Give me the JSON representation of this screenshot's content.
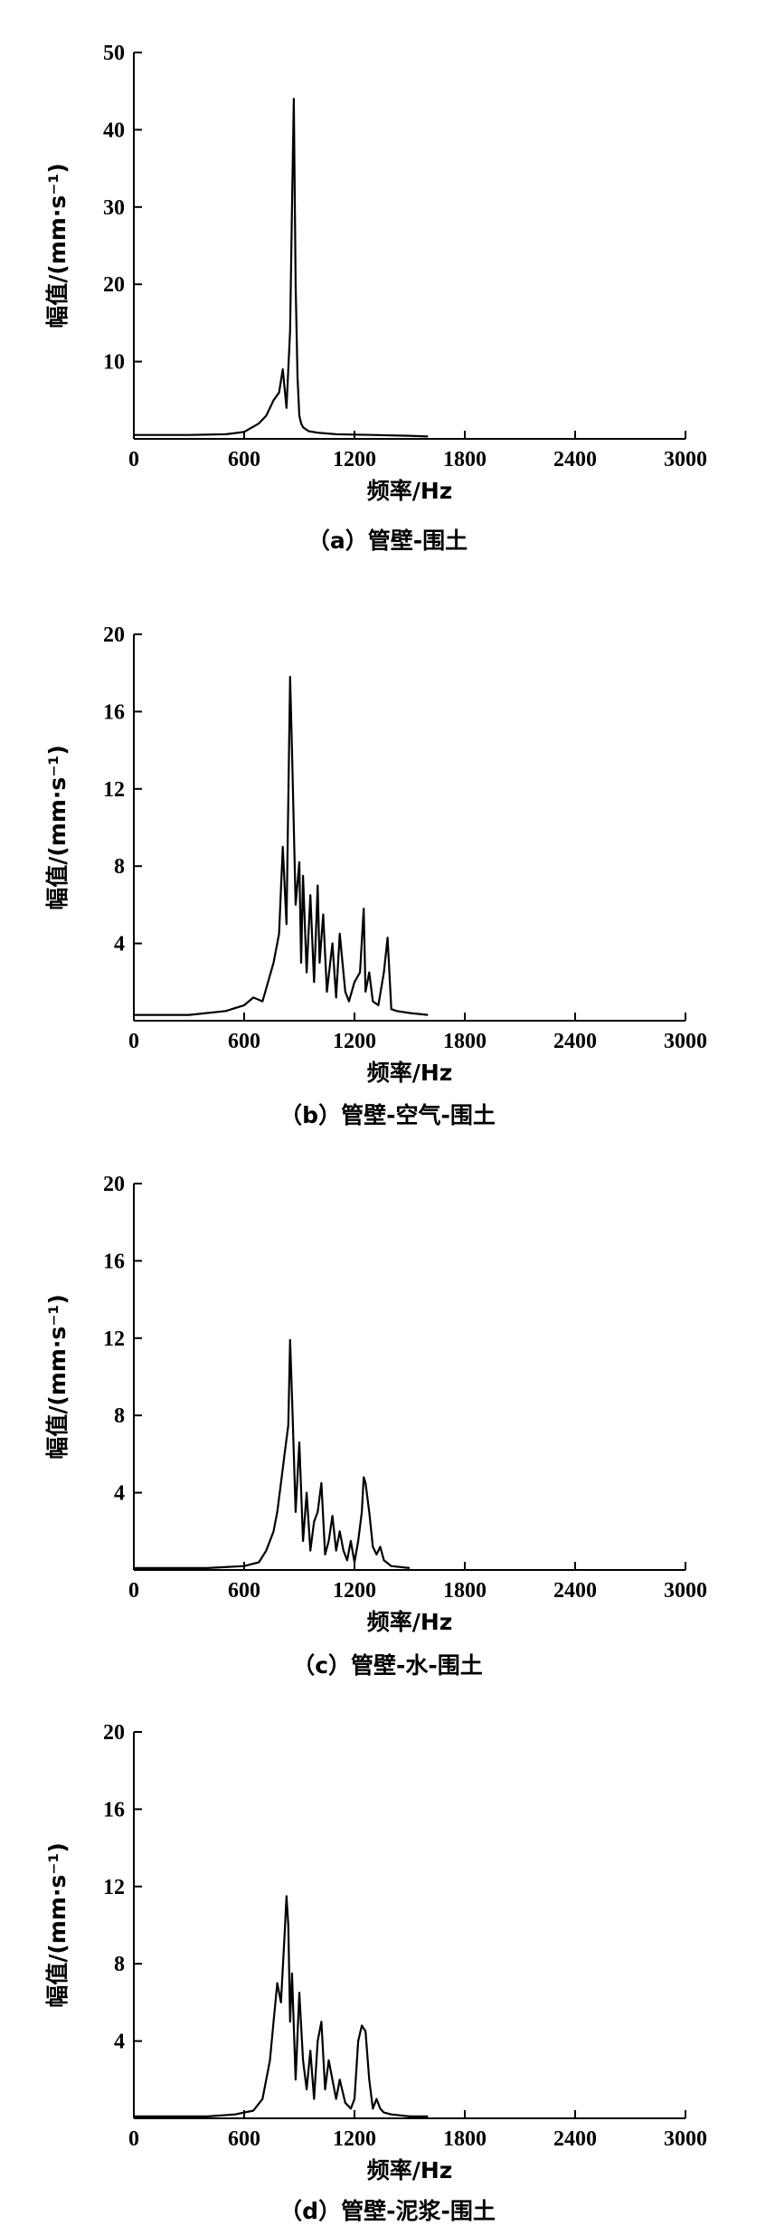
{
  "chart_data": [
    {
      "type": "line",
      "caption": "（a）管壁-围土",
      "xlabel": "频率/Hz",
      "ylabel": "幅值/(mm·s⁻¹)",
      "xlim": [
        0,
        3000
      ],
      "ylim": [
        0,
        50
      ],
      "xticks": [
        0,
        600,
        1200,
        1800,
        2400,
        3000
      ],
      "yticks": [
        10,
        20,
        30,
        40,
        50
      ],
      "series": [
        {
          "x": [
            0,
            300,
            500,
            600,
            680,
            720,
            760,
            790,
            810,
            830,
            850,
            860,
            870,
            880,
            890,
            900,
            910,
            920,
            950,
            1000,
            1100,
            1300,
            1500,
            1600
          ],
          "y": [
            0.5,
            0.5,
            0.6,
            0.9,
            2,
            3,
            5,
            6,
            9,
            4,
            14,
            30,
            44,
            20,
            8,
            3,
            2,
            1.5,
            1,
            0.8,
            0.6,
            0.5,
            0.4,
            0.3
          ]
        }
      ]
    },
    {
      "type": "line",
      "caption": "（b）管壁-空气-围土",
      "xlabel": "频率/Hz",
      "ylabel": "幅值/(mm·s⁻¹)",
      "xlim": [
        0,
        3000
      ],
      "ylim": [
        0,
        20
      ],
      "xticks": [
        0,
        600,
        1200,
        1800,
        2400,
        3000
      ],
      "yticks": [
        4,
        8,
        12,
        16,
        20
      ],
      "series": [
        {
          "x": [
            0,
            300,
            500,
            600,
            650,
            700,
            730,
            760,
            790,
            810,
            830,
            850,
            860,
            880,
            900,
            910,
            920,
            940,
            960,
            980,
            1000,
            1010,
            1030,
            1050,
            1080,
            1100,
            1120,
            1150,
            1170,
            1200,
            1230,
            1250,
            1260,
            1280,
            1300,
            1330,
            1360,
            1380,
            1400,
            1430,
            1500,
            1600
          ],
          "y": [
            0.3,
            0.3,
            0.5,
            0.8,
            1.2,
            1.0,
            2.0,
            3.0,
            4.5,
            9.0,
            5.0,
            17.8,
            14.0,
            6.0,
            8.2,
            3.0,
            7.5,
            2.5,
            6.5,
            2.0,
            7.0,
            3.0,
            5.5,
            1.5,
            4.0,
            1.2,
            4.5,
            1.5,
            1.0,
            2.0,
            2.5,
            5.8,
            1.5,
            2.5,
            1.0,
            0.8,
            2.5,
            4.3,
            0.6,
            0.5,
            0.4,
            0.3
          ]
        }
      ]
    },
    {
      "type": "line",
      "caption": "（c）管壁-水-围土",
      "xlabel": "频率/Hz",
      "ylabel": "幅值/(mm·s⁻¹)",
      "xlim": [
        0,
        3000
      ],
      "ylim": [
        0,
        20
      ],
      "xticks": [
        0,
        600,
        1200,
        1800,
        2400,
        3000
      ],
      "yticks": [
        4,
        8,
        12,
        16,
        20
      ],
      "series": [
        {
          "x": [
            0,
            400,
            600,
            680,
            720,
            760,
            780,
            800,
            820,
            840,
            850,
            860,
            870,
            880,
            900,
            920,
            940,
            960,
            980,
            1000,
            1020,
            1040,
            1060,
            1080,
            1100,
            1120,
            1140,
            1160,
            1180,
            1200,
            1220,
            1240,
            1250,
            1260,
            1280,
            1300,
            1320,
            1340,
            1360,
            1400,
            1500
          ],
          "y": [
            0.1,
            0.1,
            0.2,
            0.4,
            1.0,
            2.0,
            3.0,
            4.5,
            6.0,
            7.5,
            11.9,
            9.0,
            6.0,
            3.0,
            6.6,
            1.5,
            4.0,
            1.0,
            2.5,
            3.0,
            4.5,
            0.8,
            1.5,
            2.8,
            1.0,
            2.0,
            1.0,
            0.5,
            1.5,
            0.4,
            1.5,
            3.0,
            4.8,
            4.5,
            3.0,
            1.2,
            0.8,
            1.2,
            0.5,
            0.2,
            0.1
          ]
        }
      ]
    },
    {
      "type": "line",
      "caption": "（d）管壁-泥浆-围土",
      "xlabel": "频率/Hz",
      "ylabel": "幅值/(mm·s⁻¹)",
      "xlim": [
        0,
        3000
      ],
      "ylim": [
        0,
        20
      ],
      "xticks": [
        0,
        600,
        1200,
        1800,
        2400,
        3000
      ],
      "yticks": [
        4,
        8,
        12,
        16,
        20
      ],
      "series": [
        {
          "x": [
            0,
            400,
            550,
            650,
            700,
            740,
            760,
            780,
            800,
            820,
            830,
            840,
            850,
            860,
            880,
            900,
            920,
            940,
            960,
            980,
            1000,
            1020,
            1040,
            1060,
            1080,
            1100,
            1120,
            1150,
            1180,
            1200,
            1220,
            1240,
            1260,
            1280,
            1300,
            1320,
            1340,
            1360,
            1400,
            1500,
            1600
          ],
          "y": [
            0.1,
            0.1,
            0.2,
            0.4,
            1.0,
            3.0,
            5.0,
            7.0,
            6.0,
            9.5,
            11.5,
            10.0,
            5.0,
            7.5,
            2.0,
            6.5,
            3.0,
            1.5,
            3.5,
            1.0,
            4.0,
            5.0,
            1.5,
            3.0,
            2.0,
            1.0,
            2.0,
            0.8,
            0.5,
            1.0,
            4.0,
            4.8,
            4.5,
            2.0,
            0.5,
            1.0,
            0.5,
            0.3,
            0.2,
            0.1,
            0.1
          ]
        }
      ]
    }
  ]
}
